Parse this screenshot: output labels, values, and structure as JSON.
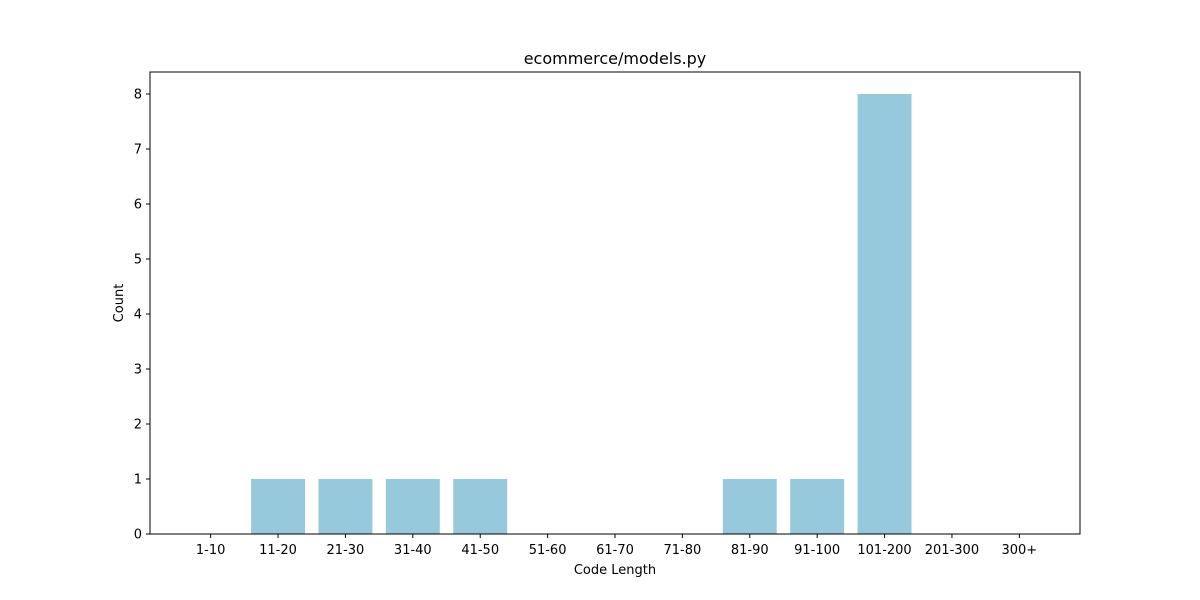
{
  "chart_data": {
    "type": "bar",
    "title": "ecommerce/models.py",
    "xlabel": "Code Length",
    "ylabel": "Count",
    "categories": [
      "1-10",
      "11-20",
      "21-30",
      "31-40",
      "41-50",
      "51-60",
      "61-70",
      "71-80",
      "81-90",
      "91-100",
      "101-200",
      "201-300",
      "300+"
    ],
    "values": [
      0,
      1,
      1,
      1,
      1,
      0,
      0,
      0,
      1,
      1,
      8,
      0,
      0
    ],
    "ylim": [
      0,
      8.4
    ],
    "yticks": [
      "0",
      "1",
      "2",
      "3",
      "4",
      "5",
      "6",
      "7",
      "8"
    ],
    "bar_color": "#96c9dc",
    "grid": false,
    "legend": "none"
  }
}
